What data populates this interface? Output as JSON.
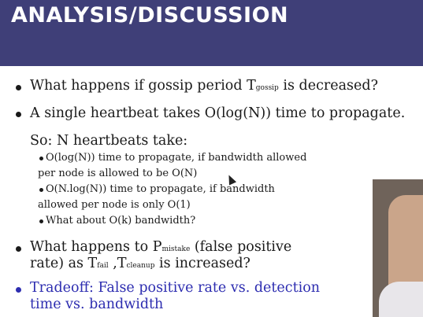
{
  "header": {
    "title": "ANALYSIS/DISCUSSION"
  },
  "bullets": {
    "b1": {
      "text": "What happens if gossip period T",
      "sub": "gossip",
      "tail": " is decreased?"
    },
    "b2": {
      "text": "A single heartbeat takes O(log(N)) time to propagate."
    },
    "so": {
      "text": "So: N heartbeats take:"
    },
    "s1a": {
      "text": "O(log(N)) time to propagate, if bandwidth allowed"
    },
    "s1b": {
      "text": "per node is allowed to be O(N)"
    },
    "s2a": {
      "text": "O(N.log(N)) time to propagate, if bandwidth"
    },
    "s2b": {
      "text": "allowed per node is only O(1)"
    },
    "s3": {
      "text": "What about O(k) bandwidth?"
    },
    "b3a": {
      "pre": "What happens to P",
      "sub": "mistake",
      "post": " (false positive"
    },
    "b3b": {
      "pre": "rate) as T",
      "sub1": "fail",
      "mid": " ,T",
      "sub2": "cleanup",
      "post": " is increased?"
    },
    "b4a": {
      "text": "Tradeoff: False positive rate vs. detection"
    },
    "b4b": {
      "text": "time vs. bandwidth"
    }
  },
  "colors": {
    "header_bg": "#3f3f78",
    "accent_blue": "#2d2db0"
  },
  "icons": {
    "cursor": "mouse-pointer-icon"
  }
}
